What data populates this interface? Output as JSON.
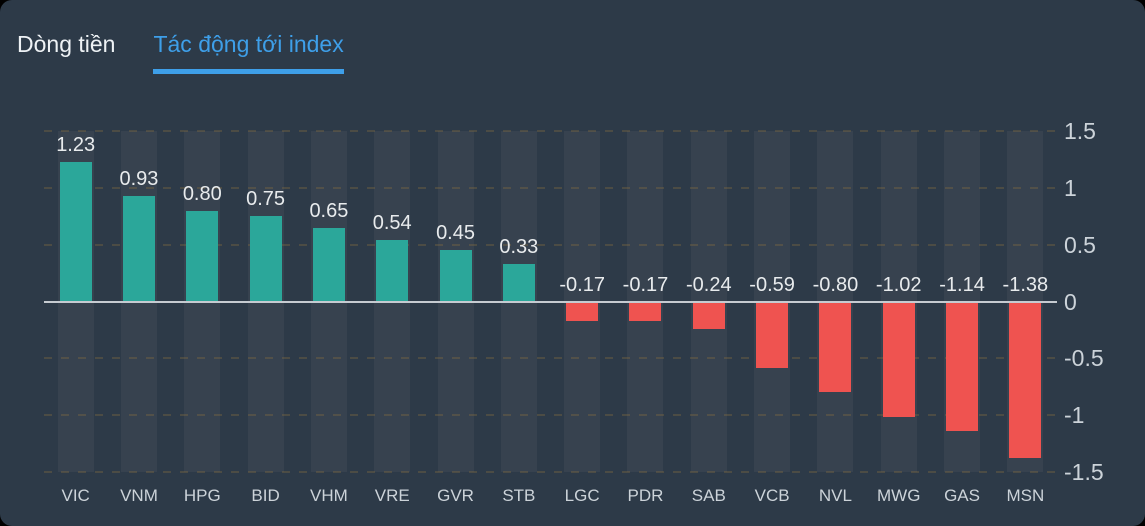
{
  "tabs": [
    {
      "label": "Dòng tiền",
      "active": false
    },
    {
      "label": "Tác động tới index",
      "active": true
    }
  ],
  "colors": {
    "panel_background": "#2d3a48",
    "column_band": "#37424f",
    "positive_bar": "#2ba79a",
    "negative_bar": "#ef5350",
    "zero_line": "#c6cbd1",
    "grid_dash": "#8a6f3e",
    "tab_active": "#3e9fe9",
    "tab_inactive": "#eef2f5",
    "value_label": "#e8ebed",
    "axis_label": "#ccd3d9"
  },
  "chart_data": {
    "type": "bar",
    "title": "Tác động tới index",
    "categories": [
      "VIC",
      "VNM",
      "HPG",
      "BID",
      "VHM",
      "VRE",
      "GVR",
      "STB",
      "LGC",
      "PDR",
      "SAB",
      "VCB",
      "NVL",
      "MWG",
      "GAS",
      "MSN"
    ],
    "values": [
      1.23,
      0.93,
      0.8,
      0.75,
      0.65,
      0.54,
      0.45,
      0.33,
      -0.17,
      -0.17,
      -0.24,
      -0.59,
      -0.8,
      -1.02,
      -1.14,
      -1.38
    ],
    "value_labels": [
      "1.23",
      "0.93",
      "0.80",
      "0.75",
      "0.65",
      "0.54",
      "0.45",
      "0.33",
      "-0.17",
      "-0.17",
      "-0.24",
      "-0.59",
      "-0.80",
      "-1.02",
      "-1.14",
      "-1.38"
    ],
    "xlabel": "",
    "ylabel": "",
    "ylim": [
      -1.5,
      1.5
    ],
    "y_ticks": [
      1.5,
      1,
      0.5,
      0,
      -0.5,
      -1,
      -1.5
    ],
    "y_tick_labels": [
      "1.5",
      "1",
      "0.5",
      "0",
      "-0.5",
      "-1",
      "-1.5"
    ],
    "y_axis_side": "right",
    "grid": "horizontal dashed lines every 0.5, solid zero line",
    "legend": "none",
    "bar_color_rule": "positive teal, negative red"
  }
}
